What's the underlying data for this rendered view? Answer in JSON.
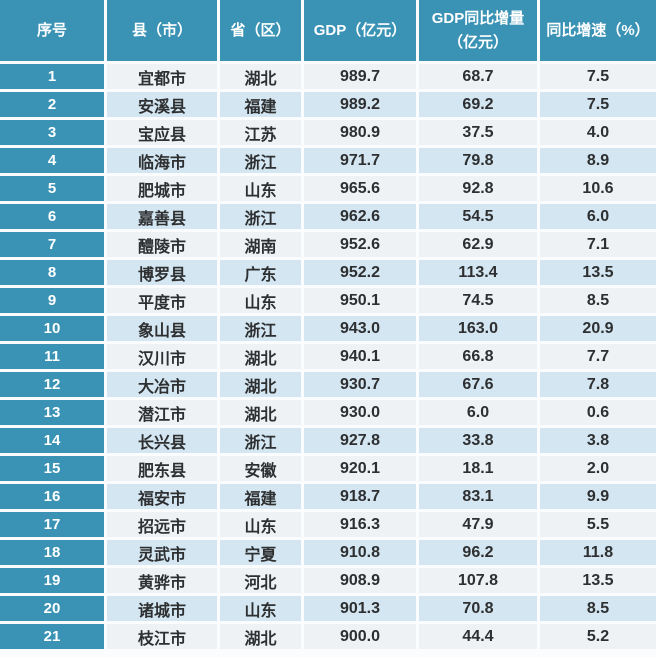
{
  "colors": {
    "header_bg": "#3a93b5",
    "index_bg": "#3a93b5",
    "header_text": "#ffffff",
    "body_text": "#2d2f31",
    "row_odd_bg": "#eef2f4",
    "row_even_bg": "#d4e6f1",
    "gap": "#ffffff"
  },
  "chart_data": {
    "type": "table",
    "columns": [
      "序号",
      "县（市）",
      "省（区）",
      "GDP（亿元）",
      "GDP同比增量（亿元）",
      "同比增速（%）"
    ],
    "rows": [
      [
        "1",
        "宜都市",
        "湖北",
        "989.7",
        "68.7",
        "7.5"
      ],
      [
        "2",
        "安溪县",
        "福建",
        "989.2",
        "69.2",
        "7.5"
      ],
      [
        "3",
        "宝应县",
        "江苏",
        "980.9",
        "37.5",
        "4.0"
      ],
      [
        "4",
        "临海市",
        "浙江",
        "971.7",
        "79.8",
        "8.9"
      ],
      [
        "5",
        "肥城市",
        "山东",
        "965.6",
        "92.8",
        "10.6"
      ],
      [
        "6",
        "嘉善县",
        "浙江",
        "962.6",
        "54.5",
        "6.0"
      ],
      [
        "7",
        "醴陵市",
        "湖南",
        "952.6",
        "62.9",
        "7.1"
      ],
      [
        "8",
        "博罗县",
        "广东",
        "952.2",
        "113.4",
        "13.5"
      ],
      [
        "9",
        "平度市",
        "山东",
        "950.1",
        "74.5",
        "8.5"
      ],
      [
        "10",
        "象山县",
        "浙江",
        "943.0",
        "163.0",
        "20.9"
      ],
      [
        "11",
        "汉川市",
        "湖北",
        "940.1",
        "66.8",
        "7.7"
      ],
      [
        "12",
        "大冶市",
        "湖北",
        "930.7",
        "67.6",
        "7.8"
      ],
      [
        "13",
        "潜江市",
        "湖北",
        "930.0",
        "6.0",
        "0.6"
      ],
      [
        "14",
        "长兴县",
        "浙江",
        "927.8",
        "33.8",
        "3.8"
      ],
      [
        "15",
        "肥东县",
        "安徽",
        "920.1",
        "18.1",
        "2.0"
      ],
      [
        "16",
        "福安市",
        "福建",
        "918.7",
        "83.1",
        "9.9"
      ],
      [
        "17",
        "招远市",
        "山东",
        "916.3",
        "47.9",
        "5.5"
      ],
      [
        "18",
        "灵武市",
        "宁夏",
        "910.8",
        "96.2",
        "11.8"
      ],
      [
        "19",
        "黄骅市",
        "河北",
        "908.9",
        "107.8",
        "13.5"
      ],
      [
        "20",
        "诸城市",
        "山东",
        "901.3",
        "70.8",
        "8.5"
      ],
      [
        "21",
        "枝江市",
        "湖北",
        "900.0",
        "44.4",
        "5.2"
      ]
    ]
  }
}
